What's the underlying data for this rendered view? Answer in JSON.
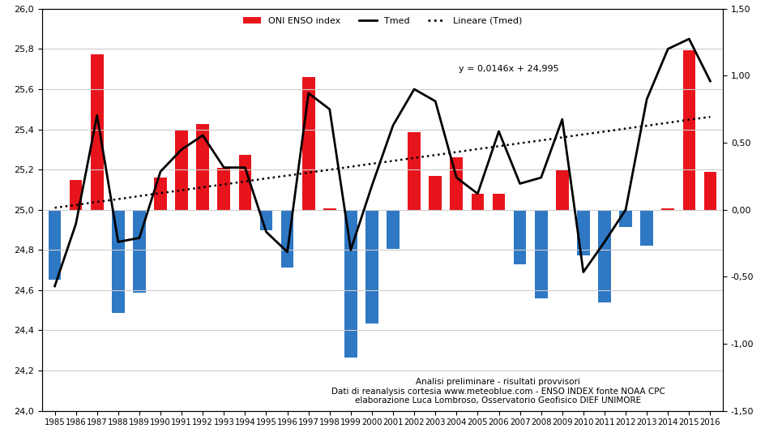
{
  "chart_data": {
    "type": "bar",
    "categories": [
      "1985",
      "1986",
      "1987",
      "1988",
      "1989",
      "1990",
      "1991",
      "1992",
      "1993",
      "1994",
      "1995",
      "1996",
      "1997",
      "1998",
      "1999",
      "2000",
      "2001",
      "2002",
      "2003",
      "2004",
      "2005",
      "2006",
      "2007",
      "2008",
      "2009",
      "2010",
      "2011",
      "2012",
      "2013",
      "2014",
      "2015",
      "2016"
    ],
    "series": [
      {
        "name": "ONI ENSO index",
        "type": "bar",
        "axis": "y2",
        "values": [
          -0.52,
          0.22,
          1.16,
          -0.77,
          -0.62,
          0.24,
          0.59,
          0.64,
          0.31,
          0.41,
          -0.15,
          -0.43,
          0.99,
          0.01,
          -1.1,
          -0.85,
          -0.29,
          0.58,
          0.25,
          0.39,
          0.12,
          0.12,
          -0.41,
          -0.66,
          0.3,
          -0.34,
          -0.69,
          -0.13,
          -0.27,
          0.01,
          1.19,
          0.28
        ],
        "colors": [
          "#2f78c4",
          "#e8141c",
          "#e8141c",
          "#2f78c4",
          "#2f78c4",
          "#e8141c",
          "#e8141c",
          "#e8141c",
          "#e8141c",
          "#e8141c",
          "#2f78c4",
          "#2f78c4",
          "#e8141c",
          "#e8141c",
          "#2f78c4",
          "#2f78c4",
          "#2f78c4",
          "#e8141c",
          "#e8141c",
          "#e8141c",
          "#e8141c",
          "#e8141c",
          "#2f78c4",
          "#2f78c4",
          "#e8141c",
          "#2f78c4",
          "#2f78c4",
          "#2f78c4",
          "#2f78c4",
          "#e8141c",
          "#e8141c",
          "#e8141c"
        ],
        "color": "#e8141c"
      },
      {
        "name": "Tmed",
        "type": "line",
        "color": "#000000",
        "line_style": "solid",
        "values": [
          24.62,
          24.93,
          25.47,
          24.84,
          24.86,
          25.19,
          25.3,
          25.37,
          25.21,
          25.21,
          24.89,
          24.79,
          25.58,
          25.5,
          24.8,
          25.12,
          25.42,
          25.6,
          25.54,
          25.16,
          25.08,
          25.39,
          25.13,
          25.16,
          25.45,
          24.69,
          24.84,
          25.0,
          25.55,
          25.8,
          25.85,
          25.64
        ]
      },
      {
        "name": "Lineare (Tmed)",
        "type": "line",
        "color": "#000000",
        "line_style": "dotted",
        "values": [
          25.01,
          25.024,
          25.039,
          25.053,
          25.068,
          25.083,
          25.097,
          25.112,
          25.126,
          25.141,
          25.156,
          25.17,
          25.185,
          25.199,
          25.214,
          25.229,
          25.243,
          25.258,
          25.272,
          25.287,
          25.302,
          25.316,
          25.331,
          25.345,
          25.36,
          25.375,
          25.389,
          25.404,
          25.418,
          25.433,
          25.448,
          25.462
        ]
      }
    ],
    "ylim": [
      24.0,
      26.0
    ],
    "yticks": [
      {
        "value": 24.0,
        "label": "24,0"
      },
      {
        "value": 24.2,
        "label": "24,2"
      },
      {
        "value": 24.4,
        "label": "24,4"
      },
      {
        "value": 24.6,
        "label": "24,6"
      },
      {
        "value": 24.8,
        "label": "24,8"
      },
      {
        "value": 25.0,
        "label": "25,0"
      },
      {
        "value": 25.2,
        "label": "25,2"
      },
      {
        "value": 25.4,
        "label": "25,4"
      },
      {
        "value": 25.6,
        "label": "25,6"
      },
      {
        "value": 25.8,
        "label": "25,8"
      },
      {
        "value": 26.0,
        "label": "26,0"
      }
    ],
    "y2lim": [
      -1.5,
      1.5
    ],
    "y2ticks": [
      {
        "value": -1.5,
        "label": "-1,50"
      },
      {
        "value": -1.0,
        "label": "-1,00"
      },
      {
        "value": -0.5,
        "label": "-0,50"
      },
      {
        "value": 0.0,
        "label": "0,00"
      },
      {
        "value": 0.5,
        "label": "0,50"
      },
      {
        "value": 1.0,
        "label": "1,00"
      },
      {
        "value": 1.5,
        "label": "1,50"
      }
    ],
    "grid": true,
    "legend": "upper center",
    "equation": "y = 0,0146x + 24,995",
    "annotations": [
      "Analisi preliminare - risultati provvisori",
      "Dati di reanalysis cortesia www.meteoblue.com - ENSO INDEX fonte NOAA CPC",
      "elaborazione Luca Lombroso, Osservatorio Geofisico DIEF UNIMORE"
    ]
  }
}
